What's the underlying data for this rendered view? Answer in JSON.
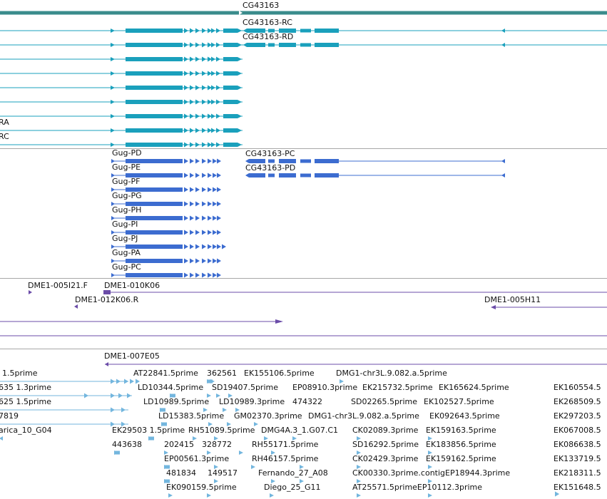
{
  "colors": {
    "gene": "#3a8c8c",
    "transcript": "#1aa0bc",
    "protein": "#3c6cd0",
    "clone": "#6b4ca8",
    "est": "#73b6de",
    "separator": "#a8a8a8"
  },
  "gene_track": {
    "gene_label": "CG43163",
    "transcript_labels": [
      "CG43163-RC",
      "CG43163-RD",
      "RA",
      "RC"
    ]
  },
  "protein_track": {
    "labels": [
      "Gug-PD",
      "Gug-PE",
      "Gug-PF",
      "Gug-PG",
      "Gug-PH",
      "Gug-PI",
      "Gug-PJ",
      "Gug-PA",
      "Gug-PC"
    ],
    "cg_labels": [
      "CG43163-PC",
      "CG43163-PD"
    ]
  },
  "clone_track": {
    "labels": [
      "DME1-005I21.F",
      "DME1-010K06",
      "DME1-012K06.R",
      "DME1-005H11",
      "DME1-007E05"
    ]
  },
  "est_track": {
    "labels": [
      "1.5prime",
      "AT22841.5prime",
      "362561",
      "EK155106.5prime",
      "DMG1-chr3L.9.082.a.5prime",
      "635 1.3prime",
      "LD10344.5prime",
      "SD19407.5prime",
      "EP08910.3prime",
      "EK215732.5prime",
      "EK165624.5prime",
      "EK160554.5",
      "625 1.5prime",
      "LD10989.5prime",
      "LD10989.3prime",
      "474322",
      "SD02265.5prime",
      "EK102527.5prime",
      "EK268509.5",
      "7819",
      "LD15383.5prime",
      "GM02370.3prime",
      "DMG1-chr3L.9.082.a.5prime",
      "EK092643.5prime",
      "EK297203.5",
      "arica_10_G04",
      "EK29503 1.5prime",
      "RH51089.5prime",
      "DMG4A.3_1.G07.C1",
      "CK02089.3prime",
      "EK159163.5prime",
      "EK067008.5",
      "443638",
      "202415",
      "328772",
      "RH55171.5prime",
      "SD16292.5prime",
      "EK183856.5prime",
      "EK086638.5",
      "EP00561.3prime",
      "RH46157.5prime",
      "CK02429.3prime",
      "EK159162.5prime",
      "EK133719.5",
      "481834",
      "149517",
      "Fernando_27_A08",
      "CK00330.3prime.contigEP18944.3prime",
      "EK218311.5",
      "EK090159.5prime",
      "Diego_25_G11",
      "AT25571.5primeEP10112.3prime",
      "EK151648.5"
    ]
  }
}
